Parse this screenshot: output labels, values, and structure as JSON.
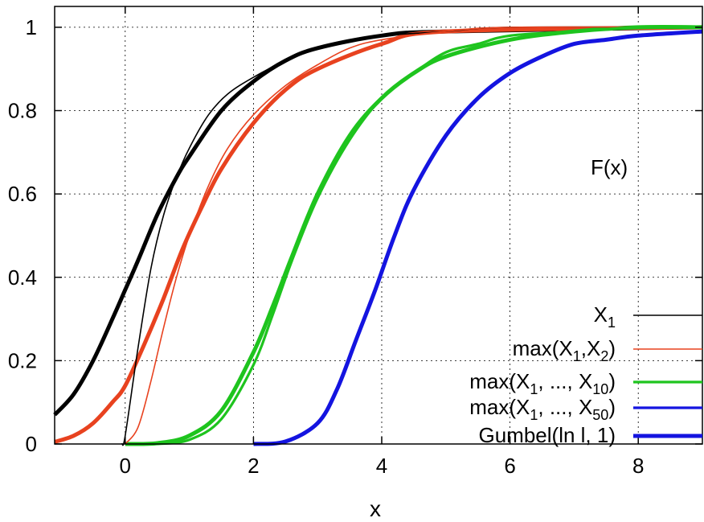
{
  "chart_data": {
    "type": "line",
    "xlabel": "x",
    "ylabel": "",
    "xlim": [
      -1.1,
      9
    ],
    "ylim": [
      0,
      1.05
    ],
    "x_ticks": [
      "0",
      "2",
      "4",
      "6",
      "8"
    ],
    "x_tick_values": [
      0,
      2,
      4,
      6,
      8
    ],
    "y_ticks": [
      "0",
      "0.2",
      "0.4",
      "0.6",
      "0.8",
      "1"
    ],
    "y_tick_values": [
      0,
      0.2,
      0.4,
      0.6,
      0.8,
      1
    ],
    "grid": true,
    "grid_style": "dotted",
    "annotation": "F(x)",
    "legend_position": "bottom-right",
    "series": [
      {
        "name": "X",
        "name_sub": "1",
        "color": "#000000",
        "width": "thin",
        "x": [
          -0.05,
          0.0,
          0.2,
          0.4,
          0.6,
          0.8,
          1.0,
          1.3,
          1.6,
          2.0,
          2.5,
          3.0,
          3.5,
          4.0,
          5.0,
          6.0,
          9.0
        ],
        "y": [
          0.0,
          0.02,
          0.23,
          0.42,
          0.55,
          0.64,
          0.71,
          0.79,
          0.84,
          0.88,
          0.92,
          0.95,
          0.97,
          0.98,
          0.99,
          1.0,
          1.0
        ]
      },
      {
        "name": "max(X",
        "name_sub": "1",
        "name_mid": ",X",
        "name_sub2": "2",
        "name_end": ")",
        "color": "#e8421f",
        "width": "thin",
        "x": [
          0.0,
          0.2,
          0.4,
          0.6,
          0.8,
          1.0,
          1.3,
          1.6,
          2.0,
          2.5,
          3.0,
          3.5,
          4.0,
          5.0,
          6.0,
          9.0
        ],
        "y": [
          0.0,
          0.04,
          0.15,
          0.28,
          0.4,
          0.5,
          0.62,
          0.71,
          0.79,
          0.86,
          0.91,
          0.95,
          0.97,
          0.99,
          1.0,
          1.0
        ]
      },
      {
        "name": "max(X",
        "name_sub": "1",
        "name_mid": ", ..., X",
        "name_sub2": "10",
        "name_end": ")",
        "color": "#1ec41e",
        "width": "medium",
        "x": [
          0.5,
          1.0,
          1.5,
          2.0,
          2.3,
          2.6,
          3.0,
          3.5,
          4.0,
          4.5,
          5.0,
          5.5,
          6.0,
          7.0,
          8.0,
          9.0
        ],
        "y": [
          0.0,
          0.01,
          0.06,
          0.19,
          0.31,
          0.44,
          0.59,
          0.73,
          0.83,
          0.89,
          0.94,
          0.96,
          0.98,
          0.99,
          1.0,
          1.0
        ]
      },
      {
        "name": "max(X",
        "name_sub": "1",
        "name_mid": ", ..., X",
        "name_sub2": "50",
        "name_end": ")",
        "color": "#1414e0",
        "width": "medium",
        "x": [
          2.0,
          2.5,
          3.0,
          3.3,
          3.6,
          3.9,
          4.2,
          4.5,
          5.0,
          5.5,
          6.0,
          6.5,
          7.0,
          7.5,
          8.0,
          9.0
        ],
        "y": [
          0.0,
          0.005,
          0.05,
          0.13,
          0.25,
          0.37,
          0.5,
          0.61,
          0.74,
          0.83,
          0.89,
          0.93,
          0.96,
          0.97,
          0.98,
          0.99
        ]
      },
      {
        "name": "Gumbel(ln l, 1)",
        "color": "#1414e0",
        "width": "thick",
        "note": "dashed reference curves drawn as thick curves beneath each series",
        "curves": [
          {
            "color": "#000000",
            "x": [
              -1.1,
              -0.8,
              -0.5,
              -0.2,
              0.0,
              0.2,
              0.5,
              0.8,
              1.0,
              1.5,
              2.0,
              2.5,
              3.0,
              4.0,
              5.0,
              9.0
            ],
            "y": [
              0.07,
              0.12,
              0.2,
              0.3,
              0.37,
              0.44,
              0.55,
              0.64,
              0.69,
              0.8,
              0.87,
              0.92,
              0.95,
              0.98,
              0.99,
              1.0
            ]
          },
          {
            "color": "#e8421f",
            "x": [
              -1.1,
              -0.8,
              -0.5,
              -0.2,
              0.0,
              0.3,
              0.6,
              0.9,
              1.2,
              1.5,
              2.0,
              2.5,
              3.0,
              4.0,
              5.0,
              9.0
            ],
            "y": [
              0.005,
              0.02,
              0.05,
              0.1,
              0.14,
              0.24,
              0.35,
              0.47,
              0.57,
              0.66,
              0.77,
              0.85,
              0.9,
              0.96,
              0.99,
              1.0
            ]
          },
          {
            "color": "#1ec41e",
            "x": [
              0.0,
              0.5,
              1.0,
              1.5,
              2.0,
              2.3,
              2.6,
              3.0,
              3.5,
              4.0,
              4.5,
              5.0,
              6.0,
              7.0,
              8.0,
              9.0
            ],
            "y": [
              0.0,
              0.002,
              0.02,
              0.08,
              0.22,
              0.33,
              0.45,
              0.6,
              0.74,
              0.83,
              0.89,
              0.93,
              0.97,
              0.99,
              1.0,
              1.0
            ]
          },
          {
            "color": "#1414e0",
            "x": [
              2.0,
              2.5,
              3.0,
              3.3,
              3.6,
              3.9,
              4.2,
              4.5,
              5.0,
              5.5,
              6.0,
              6.5,
              7.0,
              7.5,
              8.0,
              9.0
            ],
            "y": [
              0.0,
              0.006,
              0.05,
              0.13,
              0.25,
              0.37,
              0.5,
              0.61,
              0.74,
              0.83,
              0.89,
              0.93,
              0.96,
              0.97,
              0.98,
              0.99
            ]
          }
        ]
      }
    ]
  }
}
